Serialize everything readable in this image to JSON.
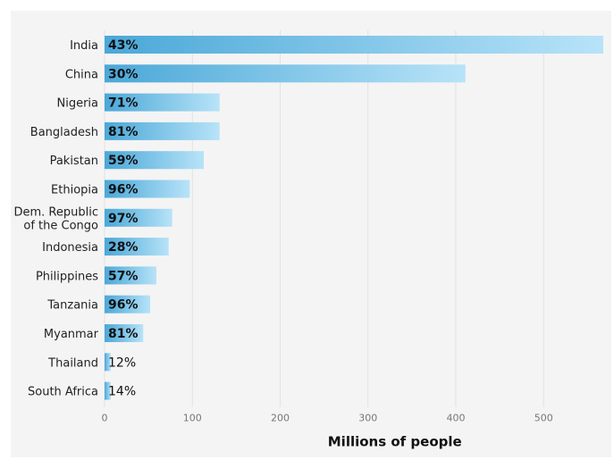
{
  "chart_data": {
    "type": "bar",
    "orientation": "horizontal",
    "xlabel": "Millions of people",
    "ylabel": "",
    "title": "",
    "xlim": [
      0,
      570
    ],
    "xticks": [
      0,
      100,
      200,
      300,
      400,
      500
    ],
    "grid": "vertical",
    "categories": [
      {
        "name": "India",
        "lines": [
          "India"
        ]
      },
      {
        "name": "China",
        "lines": [
          "China"
        ]
      },
      {
        "name": "Nigeria",
        "lines": [
          "Nigeria"
        ]
      },
      {
        "name": "Bangladesh",
        "lines": [
          "Bangladesh"
        ]
      },
      {
        "name": "Pakistan",
        "lines": [
          "Pakistan"
        ]
      },
      {
        "name": "Ethiopia",
        "lines": [
          "Ethiopia"
        ]
      },
      {
        "name": "Dem. Republic of the Congo",
        "lines": [
          "Dem. Republic",
          "of  the Congo"
        ]
      },
      {
        "name": "Indonesia",
        "lines": [
          "Indonesia"
        ]
      },
      {
        "name": "Philippines",
        "lines": [
          "Philippines"
        ]
      },
      {
        "name": "Tanzania",
        "lines": [
          "Tanzania"
        ]
      },
      {
        "name": "Myanmar",
        "lines": [
          "Myanmar"
        ]
      },
      {
        "name": "Thailand",
        "lines": [
          "Thailand"
        ]
      },
      {
        "name": "South Africa",
        "lines": [
          "South Africa"
        ]
      }
    ],
    "values": [
      568,
      411,
      131,
      131,
      113,
      97,
      77,
      73,
      59,
      52,
      44,
      7,
      7
    ],
    "percent_labels": [
      "43%",
      "30%",
      "71%",
      "81%",
      "59%",
      "96%",
      "97%",
      "28%",
      "57%",
      "96%",
      "81%",
      "12%",
      "14%"
    ],
    "colors": {
      "bar_start": "#4aa8d8",
      "bar_end": "#b8e3f8",
      "grid": "#e2e2e2",
      "panel": "#f4f4f4"
    }
  }
}
